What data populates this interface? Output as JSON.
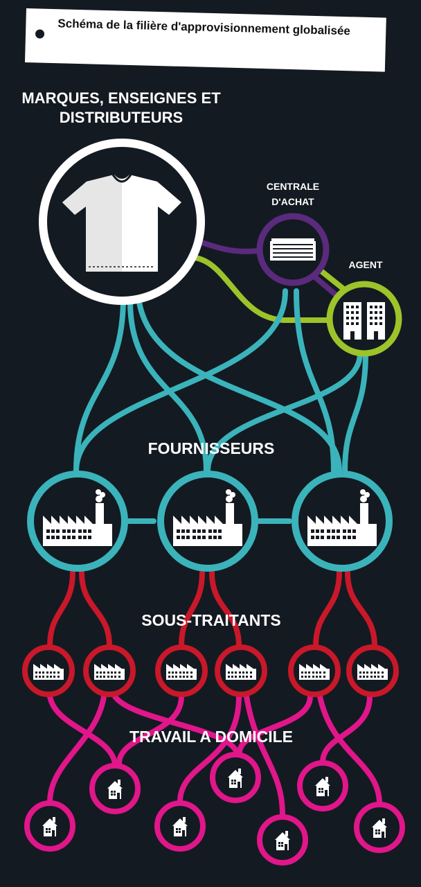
{
  "title": "Schéma de la filière d'approvisionnement globalisée",
  "labels": {
    "brands": "MARQUES, ENSEIGNES ET DISTRIBUTEURS",
    "central_l1": "CENTRALE",
    "central_l2": "D'ACHAT",
    "agent": "AGENT",
    "suppliers": "FOURNISSEURS",
    "subcontractors": "SOUS-TRAITANTS",
    "homework": "TRAVAIL A DOMICILE"
  },
  "colors": {
    "background": "#141a21",
    "brand": "#ffffff",
    "central": "#5a2a7d",
    "agent": "#9cc42a",
    "supplier": "#3bb3bb",
    "subcontractor": "#c8182a",
    "homeworker": "#e0168a"
  },
  "icons": {
    "brand": "tshirt-icon",
    "central": "building-icon",
    "agent": "towers-icon",
    "supplier": "factory-icon",
    "subcontractor": "small-factory-icon",
    "homeworker": "house-icon"
  }
}
